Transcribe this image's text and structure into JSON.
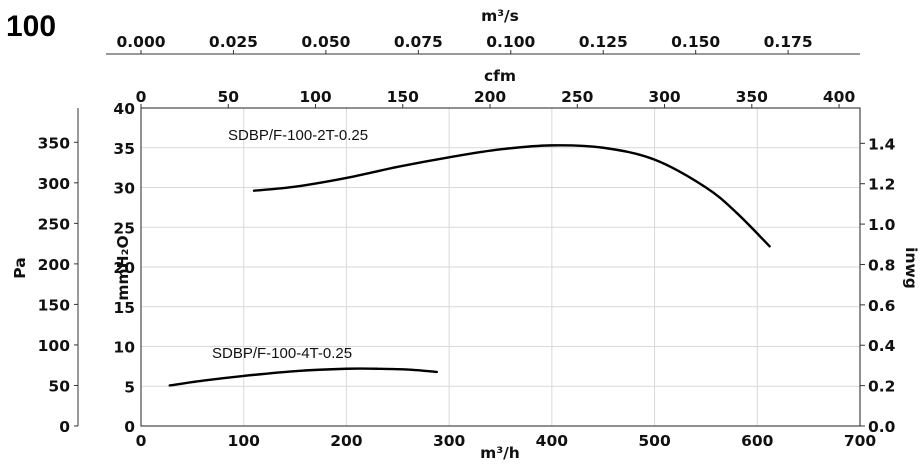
{
  "page_title": "100",
  "chart_data": {
    "type": "line",
    "axes": {
      "x_bottom": {
        "label": "m³/h",
        "range": [
          0,
          700
        ],
        "ticks": [
          "0",
          "100",
          "200",
          "300",
          "400",
          "500",
          "600",
          "700"
        ]
      },
      "x_top_flow_m3s": {
        "label": "m³/s",
        "range": [
          0,
          0.19444
        ],
        "ticks": [
          "0.000",
          "0.025",
          "0.050",
          "0.075",
          "0.100",
          "0.125",
          "0.150",
          "0.175"
        ]
      },
      "x_top_flow_cfm": {
        "label": "cfm",
        "range": [
          0,
          412
        ],
        "ticks": [
          "0",
          "50",
          "100",
          "150",
          "200",
          "250",
          "300",
          "350",
          "400"
        ]
      },
      "y_left_pa": {
        "label": "Pa",
        "range": [
          0,
          392.3
        ],
        "ticks": [
          "0",
          "50",
          "100",
          "150",
          "200",
          "250",
          "300",
          "350"
        ]
      },
      "y_left_mmh2o": {
        "label": "mmH₂O",
        "range": [
          0,
          40
        ],
        "ticks": [
          "0",
          "5",
          "10",
          "15",
          "20",
          "25",
          "30",
          "35",
          "40"
        ]
      },
      "y_right_inwg": {
        "label": "inwg",
        "range": [
          0,
          1.575
        ],
        "ticks": [
          "0.0",
          "0.2",
          "0.4",
          "0.6",
          "0.8",
          "1.0",
          "1.2",
          "1.4"
        ]
      }
    },
    "grid": true,
    "series": [
      {
        "name": "SDBP/F-100-2T-0.25",
        "x": [
          110,
          150,
          200,
          250,
          300,
          350,
          400,
          450,
          500,
          550,
          580,
          612
        ],
        "y": [
          29.6,
          30.1,
          31.2,
          32.6,
          33.8,
          34.8,
          35.3,
          35.0,
          33.5,
          30.0,
          26.8,
          22.6
        ]
      },
      {
        "name": "SDBP/F-100-4T-0.25",
        "x": [
          28,
          60,
          100,
          150,
          200,
          230,
          260,
          288
        ],
        "y": [
          5.1,
          5.7,
          6.3,
          6.9,
          7.2,
          7.2,
          7.1,
          6.8
        ]
      }
    ]
  }
}
